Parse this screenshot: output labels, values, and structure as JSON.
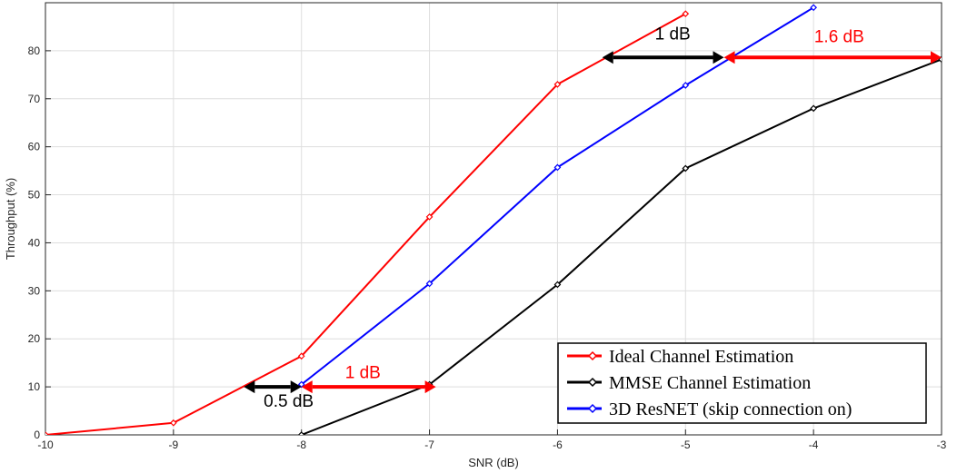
{
  "chart_data": {
    "type": "line",
    "xlabel": "SNR (dB)",
    "ylabel": "Throughput (%)",
    "xlim": [
      -10,
      -3
    ],
    "ylim": [
      0,
      90
    ],
    "xticks": [
      -10,
      -9,
      -8,
      -7,
      -6,
      -5,
      -4,
      -3
    ],
    "yticks": [
      0,
      10,
      20,
      30,
      40,
      50,
      60,
      70,
      80
    ],
    "grid": true,
    "legend_position": "bottom-right",
    "series": [
      {
        "name": "Ideal Channel Estimation",
        "color": "#ff0000",
        "x": [
          -10,
          -9,
          -8,
          -7,
          -6,
          -5
        ],
        "y": [
          0,
          2.5,
          16.4,
          45.4,
          73,
          87.7
        ]
      },
      {
        "name": "MMSE Channel Estimation",
        "color": "#000000",
        "x": [
          -8,
          -7,
          -6,
          -5,
          -4,
          -3
        ],
        "y": [
          0,
          10.5,
          31.3,
          55.5,
          68,
          78.2
        ]
      },
      {
        "name": "3D ResNET  (skip connection on)",
        "color": "#0000ff",
        "x": [
          -8,
          -7,
          -6,
          -5,
          -4
        ],
        "y": [
          10.5,
          31.5,
          55.7,
          72.8,
          89
        ]
      }
    ],
    "annotations": [
      {
        "text": "0.5 dB",
        "color": "#000000",
        "text_color": "#000000",
        "x_from": -8.45,
        "x_to": -8.0,
        "y": 10,
        "text_x": -8.1,
        "text_y": 5.9
      },
      {
        "text": "1 dB",
        "color": "#ff0000",
        "text_color": "#ff0000",
        "x_from": -8.0,
        "x_to": -6.95,
        "y": 10,
        "text_x": -7.52,
        "text_y": 11.8
      },
      {
        "text": "1 dB",
        "color": "#000000",
        "text_color": "#000000",
        "x_from": -5.65,
        "x_to": -4.7,
        "y": 78.6,
        "text_x": -5.1,
        "text_y": 82.3
      },
      {
        "text": "1.6 dB",
        "color": "#ff0000",
        "text_color": "#ff0000",
        "x_from": -4.7,
        "x_to": -3.0,
        "y": 78.6,
        "text_x": -3.8,
        "text_y": 81.8
      }
    ]
  }
}
